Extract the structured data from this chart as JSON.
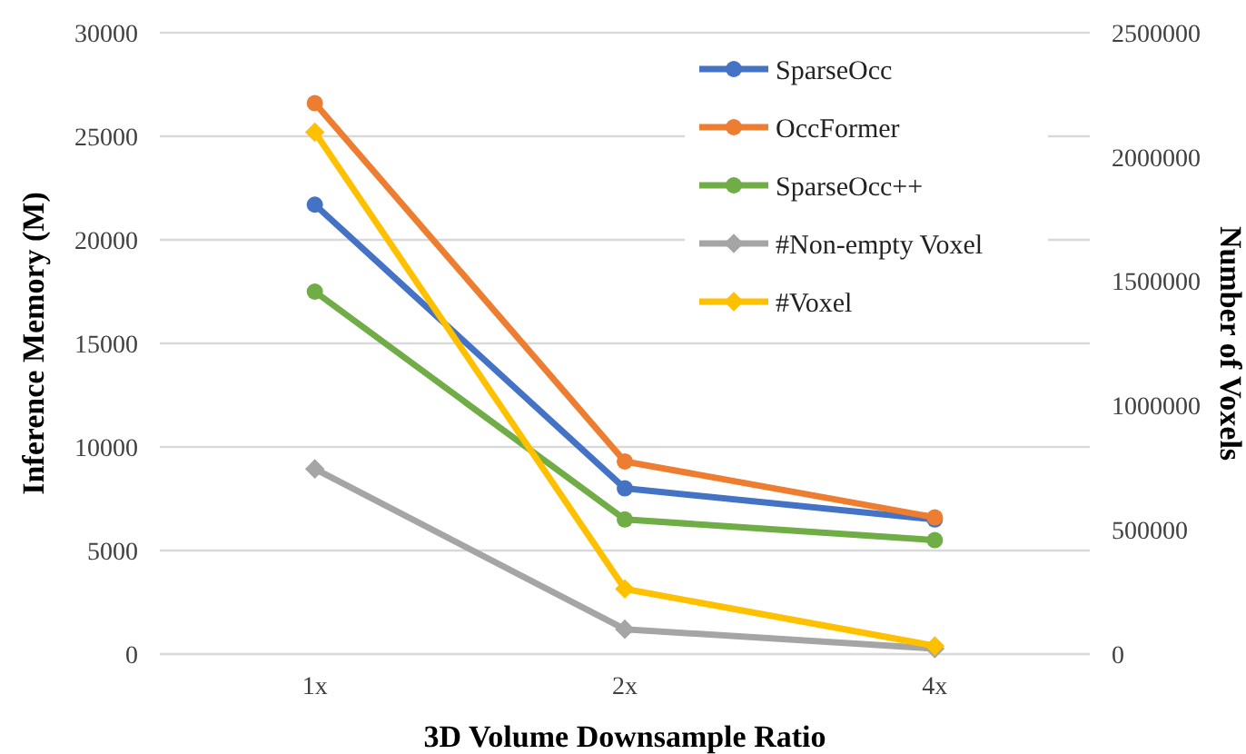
{
  "chart_data": {
    "type": "line",
    "xlabel": "3D Volume Downsample Ratio",
    "ylabel": "Inference Memory (M)",
    "y2label": "Number of Voxels",
    "categories": [
      "1x",
      "2x",
      "4x"
    ],
    "series": [
      {
        "name": "SparseOcc",
        "color": "#4472c4",
        "marker": "circle",
        "values": [
          21700,
          8000,
          6500
        ]
      },
      {
        "name": "OccFormer",
        "color": "#ed7d31",
        "marker": "circle",
        "values": [
          26600,
          9300,
          6600
        ]
      },
      {
        "name": "SparseOcc++",
        "color": "#70ad47",
        "marker": "circle",
        "values": [
          17500,
          6500,
          5500
        ]
      },
      {
        "name": "#Non-empty Voxel",
        "color": "#a5a5a5",
        "marker": "diamond",
        "axis": "y2",
        "values": [
          745000,
          100000,
          22000
        ]
      },
      {
        "name": "#Voxel",
        "color": "#ffc000",
        "marker": "diamond",
        "axis": "y2",
        "values": [
          2100000,
          262000,
          33000
        ]
      }
    ],
    "ylim": [
      0,
      30000
    ],
    "yticks": [
      0,
      5000,
      10000,
      15000,
      20000,
      25000,
      30000
    ],
    "y2lim": [
      0,
      2500000
    ],
    "y2ticks": [
      0,
      500000,
      1000000,
      1500000,
      2000000,
      2500000
    ],
    "grid": "y",
    "legend": "top right"
  }
}
